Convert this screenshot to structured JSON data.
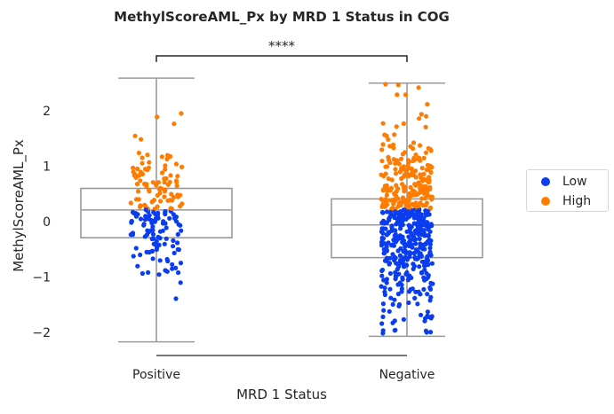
{
  "chart_data": {
    "type": "box-strip",
    "title": "MethylScoreAML_Px by MRD 1 Status in COG",
    "xlabel": "MRD 1 Status",
    "ylabel": "MethylScoreAML_Px",
    "categories": [
      "Positive",
      "Negative"
    ],
    "ylim": [
      -2.4,
      2.95
    ],
    "yticks": [
      -2,
      -1,
      0,
      1,
      2
    ],
    "ytick_labels": [
      "−2",
      "−1",
      "0",
      "1",
      "2"
    ],
    "grid": false,
    "legend": {
      "placement": "right",
      "entries": [
        {
          "label": "Low",
          "color": "#0a3cf0"
        },
        {
          "label": "High",
          "color": "#ff7c00"
        }
      ]
    },
    "threshold": 0.22,
    "boxes": [
      {
        "category": "Positive",
        "whisker_low": -2.17,
        "q1": -0.29,
        "median": 0.21,
        "q3": 0.6,
        "whisker_high": 2.59
      },
      {
        "category": "Negative",
        "whisker_low": -2.07,
        "q1": -0.65,
        "median": -0.06,
        "q3": 0.41,
        "whisker_high": 2.5
      }
    ],
    "strip_counts": {
      "Positive": 190,
      "Negative": 560
    },
    "annotation": {
      "text": "****",
      "between": [
        "Positive",
        "Negative"
      ]
    },
    "colors": {
      "box": "#999999",
      "bracket": "#262626"
    }
  }
}
